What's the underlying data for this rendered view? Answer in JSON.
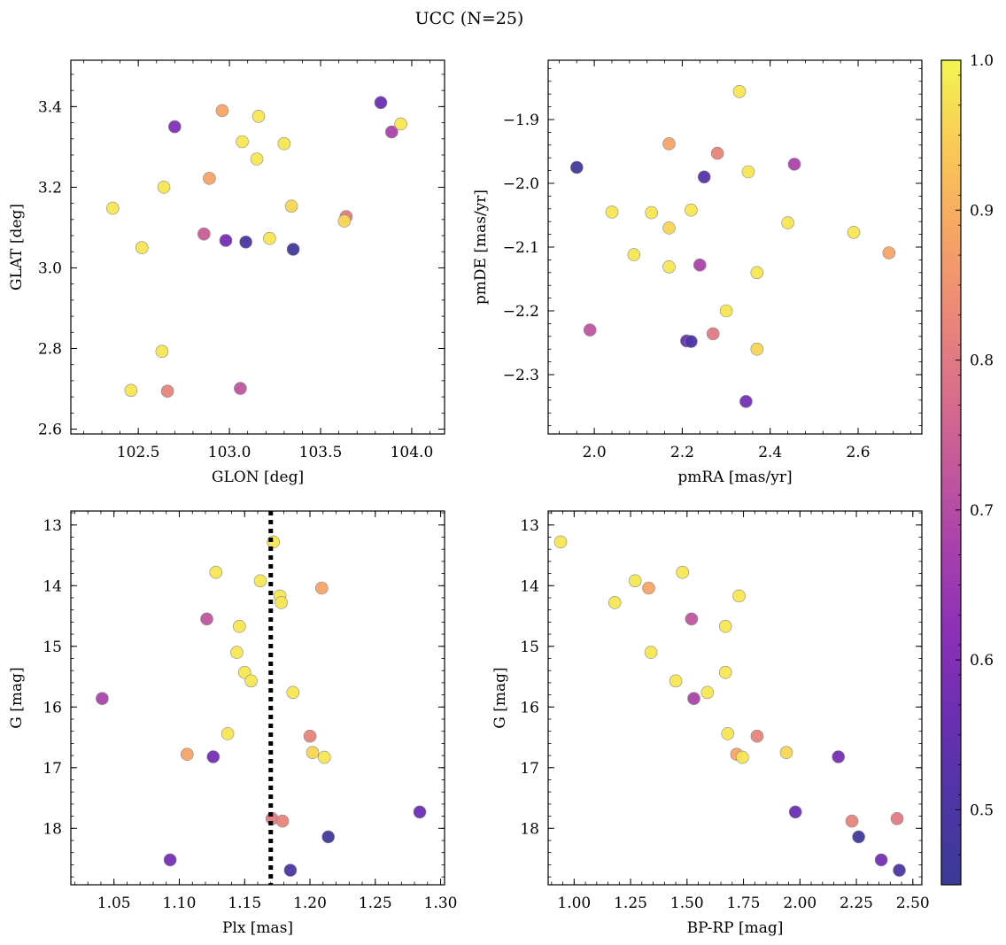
{
  "chart_data": {
    "title": "UCC (N=25)",
    "colorbar": {
      "colormap": "plasma",
      "range": [
        0.45,
        1.0
      ],
      "ticks": [
        0.5,
        0.6,
        0.7,
        0.8,
        0.9,
        1.0
      ],
      "tick_labels": [
        "0.5",
        "0.6",
        "0.7",
        "0.8",
        "0.9",
        "1.0"
      ]
    },
    "panels": [
      {
        "id": "glon-glat",
        "type": "scatter",
        "xlabel": "GLON [deg]",
        "ylabel": "GLAT [deg]",
        "xlim": [
          102.13,
          104.18
        ],
        "ylim": [
          2.588,
          3.515
        ],
        "invert_y": false,
        "xticks": [
          102.5,
          103.0,
          103.5,
          104.0
        ],
        "xtick_labels": [
          "102.5",
          "103.0",
          "103.5",
          "104.0"
        ],
        "yticks": [
          2.6,
          2.8,
          3.0,
          3.2,
          3.4
        ],
        "ytick_labels": [
          "2.6",
          "2.8",
          "3.0",
          "3.2",
          "3.4"
        ],
        "points": [
          {
            "x": 102.36,
            "y": 3.148,
            "c": 0.98
          },
          {
            "x": 102.52,
            "y": 3.05,
            "c": 0.98
          },
          {
            "x": 102.64,
            "y": 3.2,
            "c": 0.98
          },
          {
            "x": 102.7,
            "y": 3.35,
            "c": 0.6
          },
          {
            "x": 102.63,
            "y": 2.793,
            "c": 0.98
          },
          {
            "x": 102.46,
            "y": 2.696,
            "c": 0.98
          },
          {
            "x": 102.66,
            "y": 2.694,
            "c": 0.82
          },
          {
            "x": 102.86,
            "y": 3.084,
            "c": 0.74
          },
          {
            "x": 102.89,
            "y": 3.222,
            "c": 0.88
          },
          {
            "x": 102.96,
            "y": 3.39,
            "c": 0.88
          },
          {
            "x": 102.98,
            "y": 3.068,
            "c": 0.58
          },
          {
            "x": 103.07,
            "y": 3.313,
            "c": 0.98
          },
          {
            "x": 103.09,
            "y": 3.064,
            "c": 0.5
          },
          {
            "x": 103.06,
            "y": 2.701,
            "c": 0.72
          },
          {
            "x": 103.15,
            "y": 3.27,
            "c": 0.98
          },
          {
            "x": 103.16,
            "y": 3.376,
            "c": 0.98
          },
          {
            "x": 103.22,
            "y": 3.073,
            "c": 0.98
          },
          {
            "x": 103.3,
            "y": 3.308,
            "c": 0.98
          },
          {
            "x": 103.34,
            "y": 3.153,
            "c": 0.96
          },
          {
            "x": 103.35,
            "y": 3.046,
            "c": 0.47
          },
          {
            "x": 103.64,
            "y": 3.127,
            "c": 0.8
          },
          {
            "x": 103.63,
            "y": 3.116,
            "c": 0.96
          },
          {
            "x": 103.83,
            "y": 3.41,
            "c": 0.56
          },
          {
            "x": 103.89,
            "y": 3.337,
            "c": 0.68
          },
          {
            "x": 103.94,
            "y": 3.357,
            "c": 0.98
          }
        ]
      },
      {
        "id": "pmra-pmde",
        "type": "scatter",
        "xlabel": "pmRA [mas/yr]",
        "ylabel": "pmDE [mas/yr]",
        "xlim": [
          1.895,
          2.745
        ],
        "ylim": [
          -2.393,
          -1.807
        ],
        "invert_y": false,
        "xticks": [
          2.0,
          2.2,
          2.4,
          2.6
        ],
        "xtick_labels": [
          "2.0",
          "2.2",
          "2.4",
          "2.6"
        ],
        "yticks": [
          -2.3,
          -2.2,
          -2.1,
          -2.0,
          -1.9
        ],
        "ytick_labels": [
          "−2.3",
          "−2.2",
          "−2.1",
          "−2.0",
          "−1.9"
        ],
        "points": [
          {
            "x": 1.96,
            "y": -1.975,
            "c": 0.47
          },
          {
            "x": 1.99,
            "y": -2.23,
            "c": 0.72
          },
          {
            "x": 2.04,
            "y": -2.045,
            "c": 0.98
          },
          {
            "x": 2.09,
            "y": -2.112,
            "c": 0.98
          },
          {
            "x": 2.13,
            "y": -2.046,
            "c": 0.98
          },
          {
            "x": 2.17,
            "y": -1.938,
            "c": 0.88
          },
          {
            "x": 2.17,
            "y": -2.07,
            "c": 0.96
          },
          {
            "x": 2.17,
            "y": -2.131,
            "c": 0.98
          },
          {
            "x": 2.21,
            "y": -2.247,
            "c": 0.56
          },
          {
            "x": 2.22,
            "y": -2.248,
            "c": 0.5
          },
          {
            "x": 2.22,
            "y": -2.042,
            "c": 0.98
          },
          {
            "x": 2.24,
            "y": -2.128,
            "c": 0.68
          },
          {
            "x": 2.25,
            "y": -1.99,
            "c": 0.52
          },
          {
            "x": 2.27,
            "y": -2.236,
            "c": 0.8
          },
          {
            "x": 2.28,
            "y": -1.953,
            "c": 0.82
          },
          {
            "x": 2.3,
            "y": -2.2,
            "c": 0.98
          },
          {
            "x": 2.33,
            "y": -1.856,
            "c": 0.98
          },
          {
            "x": 2.345,
            "y": -2.342,
            "c": 0.58
          },
          {
            "x": 2.35,
            "y": -1.982,
            "c": 0.98
          },
          {
            "x": 2.37,
            "y": -2.14,
            "c": 0.98
          },
          {
            "x": 2.37,
            "y": -2.26,
            "c": 0.96
          },
          {
            "x": 2.44,
            "y": -2.062,
            "c": 0.98
          },
          {
            "x": 2.455,
            "y": -1.97,
            "c": 0.68
          },
          {
            "x": 2.59,
            "y": -2.077,
            "c": 0.98
          },
          {
            "x": 2.67,
            "y": -2.109,
            "c": 0.88
          }
        ]
      },
      {
        "id": "plx-g",
        "type": "scatter",
        "xlabel": "Plx [mas]",
        "ylabel": "G [mag]",
        "xlim": [
          1.017,
          1.303
        ],
        "ylim": [
          12.77,
          18.93
        ],
        "invert_y": true,
        "vline": {
          "x": 1.17,
          "style": "dotted"
        },
        "xticks": [
          1.05,
          1.1,
          1.15,
          1.2,
          1.25,
          1.3
        ],
        "xtick_labels": [
          "1.05",
          "1.10",
          "1.15",
          "1.20",
          "1.25",
          "1.30"
        ],
        "yticks": [
          13,
          14,
          15,
          16,
          17,
          18
        ],
        "ytick_labels": [
          "13",
          "14",
          "15",
          "16",
          "17",
          "18"
        ],
        "points": [
          {
            "x": 1.172,
            "y": 13.28,
            "c": 0.98
          },
          {
            "x": 1.128,
            "y": 13.78,
            "c": 0.98
          },
          {
            "x": 1.162,
            "y": 13.92,
            "c": 0.98
          },
          {
            "x": 1.209,
            "y": 14.04,
            "c": 0.88
          },
          {
            "x": 1.177,
            "y": 14.17,
            "c": 0.98
          },
          {
            "x": 1.178,
            "y": 14.28,
            "c": 0.98
          },
          {
            "x": 1.121,
            "y": 14.55,
            "c": 0.72
          },
          {
            "x": 1.146,
            "y": 14.67,
            "c": 0.98
          },
          {
            "x": 1.144,
            "y": 15.1,
            "c": 0.98
          },
          {
            "x": 1.15,
            "y": 15.43,
            "c": 0.98
          },
          {
            "x": 1.155,
            "y": 15.57,
            "c": 0.98
          },
          {
            "x": 1.041,
            "y": 15.86,
            "c": 0.68
          },
          {
            "x": 1.187,
            "y": 15.76,
            "c": 0.98
          },
          {
            "x": 1.137,
            "y": 16.44,
            "c": 0.98
          },
          {
            "x": 1.2,
            "y": 16.48,
            "c": 0.82
          },
          {
            "x": 1.106,
            "y": 16.78,
            "c": 0.88
          },
          {
            "x": 1.202,
            "y": 16.75,
            "c": 0.96
          },
          {
            "x": 1.211,
            "y": 16.83,
            "c": 0.98
          },
          {
            "x": 1.126,
            "y": 16.82,
            "c": 0.58
          },
          {
            "x": 1.284,
            "y": 17.73,
            "c": 0.56
          },
          {
            "x": 1.171,
            "y": 17.84,
            "c": 0.8
          },
          {
            "x": 1.179,
            "y": 17.88,
            "c": 0.82
          },
          {
            "x": 1.214,
            "y": 18.14,
            "c": 0.47
          },
          {
            "x": 1.093,
            "y": 18.52,
            "c": 0.58
          },
          {
            "x": 1.185,
            "y": 18.69,
            "c": 0.5
          }
        ]
      },
      {
        "id": "bprp-g",
        "type": "scatter",
        "xlabel": "BP-RP [mag]",
        "ylabel": "G [mag]",
        "xlim": [
          0.885,
          2.54
        ],
        "ylim": [
          12.77,
          18.93
        ],
        "invert_y": true,
        "xticks": [
          1.0,
          1.25,
          1.5,
          1.75,
          2.0,
          2.25,
          2.5
        ],
        "xtick_labels": [
          "1.00",
          "1.25",
          "1.50",
          "1.75",
          "2.00",
          "2.25",
          "2.50"
        ],
        "yticks": [
          13,
          14,
          15,
          16,
          17,
          18
        ],
        "ytick_labels": [
          "13",
          "14",
          "15",
          "16",
          "17",
          "18"
        ],
        "points": [
          {
            "x": 0.94,
            "y": 13.28,
            "c": 0.98
          },
          {
            "x": 1.18,
            "y": 14.28,
            "c": 0.98
          },
          {
            "x": 1.27,
            "y": 13.92,
            "c": 0.98
          },
          {
            "x": 1.33,
            "y": 14.04,
            "c": 0.88
          },
          {
            "x": 1.34,
            "y": 15.1,
            "c": 0.98
          },
          {
            "x": 1.48,
            "y": 13.78,
            "c": 0.98
          },
          {
            "x": 1.45,
            "y": 15.57,
            "c": 0.98
          },
          {
            "x": 1.52,
            "y": 14.55,
            "c": 0.72
          },
          {
            "x": 1.53,
            "y": 15.86,
            "c": 0.68
          },
          {
            "x": 1.59,
            "y": 15.76,
            "c": 0.98
          },
          {
            "x": 1.67,
            "y": 14.67,
            "c": 0.98
          },
          {
            "x": 1.67,
            "y": 15.43,
            "c": 0.98
          },
          {
            "x": 1.73,
            "y": 14.17,
            "c": 0.98
          },
          {
            "x": 1.68,
            "y": 16.44,
            "c": 0.98
          },
          {
            "x": 1.72,
            "y": 16.78,
            "c": 0.88
          },
          {
            "x": 1.745,
            "y": 16.83,
            "c": 0.98
          },
          {
            "x": 1.81,
            "y": 16.48,
            "c": 0.82
          },
          {
            "x": 1.94,
            "y": 16.75,
            "c": 0.96
          },
          {
            "x": 1.98,
            "y": 17.73,
            "c": 0.56
          },
          {
            "x": 2.17,
            "y": 16.82,
            "c": 0.58
          },
          {
            "x": 2.23,
            "y": 17.88,
            "c": 0.82
          },
          {
            "x": 2.26,
            "y": 18.14,
            "c": 0.47
          },
          {
            "x": 2.36,
            "y": 18.52,
            "c": 0.58
          },
          {
            "x": 2.43,
            "y": 17.84,
            "c": 0.8
          },
          {
            "x": 2.44,
            "y": 18.69,
            "c": 0.5
          }
        ]
      }
    ]
  }
}
